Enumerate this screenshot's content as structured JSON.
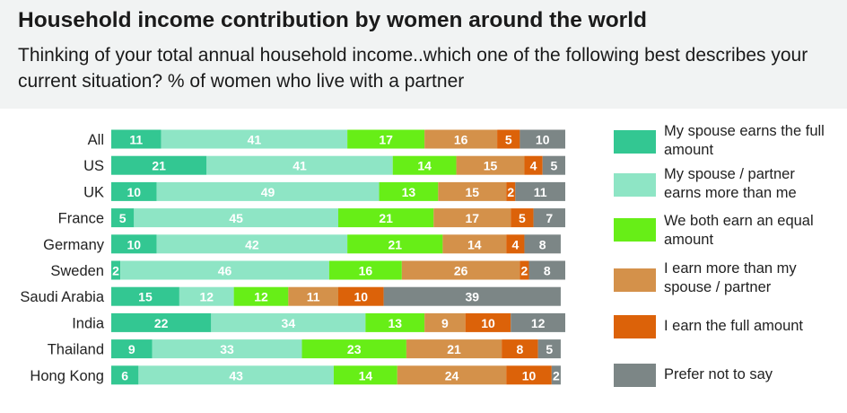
{
  "header": {
    "title": "Household income contribution by women around the world",
    "subtitle": "Thinking of your total annual household income..which one of the following best describes your current situation? % of women who live with a partner"
  },
  "colors": {
    "header_bg": "#f1f3f3",
    "spouse_full": "#33c792",
    "spouse_more": "#8ee5c5",
    "equal": "#67ee17",
    "me_more": "#d4914a",
    "me_full": "#dc6209",
    "prefer_not": "#7c8686"
  },
  "chart_data": {
    "type": "bar",
    "orientation": "horizontal",
    "stacked": true,
    "title": "Household income contribution by women around the world",
    "categories": [
      "All",
      "US",
      "UK",
      "France",
      "Germany",
      "Sweden",
      "Saudi Arabia",
      "India",
      "Thailand",
      "Hong Kong"
    ],
    "series": [
      {
        "name": "My spouse earns the full amount",
        "color": "#33c792",
        "values": [
          11,
          21,
          10,
          5,
          10,
          2,
          15,
          22,
          9,
          6
        ]
      },
      {
        "name": "My spouse / partner earns more than me",
        "color": "#8ee5c5",
        "values": [
          41,
          41,
          49,
          45,
          42,
          46,
          12,
          34,
          33,
          43
        ]
      },
      {
        "name": "We both earn an equal amount",
        "color": "#67ee17",
        "values": [
          17,
          14,
          13,
          21,
          21,
          16,
          12,
          13,
          23,
          14
        ]
      },
      {
        "name": "I earn more than my spouse / partner",
        "color": "#d4914a",
        "values": [
          16,
          15,
          15,
          17,
          14,
          26,
          11,
          9,
          21,
          24
        ]
      },
      {
        "name": "I earn the full amount",
        "color": "#dc6209",
        "values": [
          5,
          4,
          2,
          5,
          4,
          2,
          10,
          10,
          8,
          10
        ]
      },
      {
        "name": "Prefer not to say",
        "color": "#7c8686",
        "values": [
          10,
          5,
          11,
          7,
          8,
          8,
          39,
          12,
          5,
          2
        ]
      }
    ],
    "data_labels": true,
    "legend_position": "right"
  }
}
